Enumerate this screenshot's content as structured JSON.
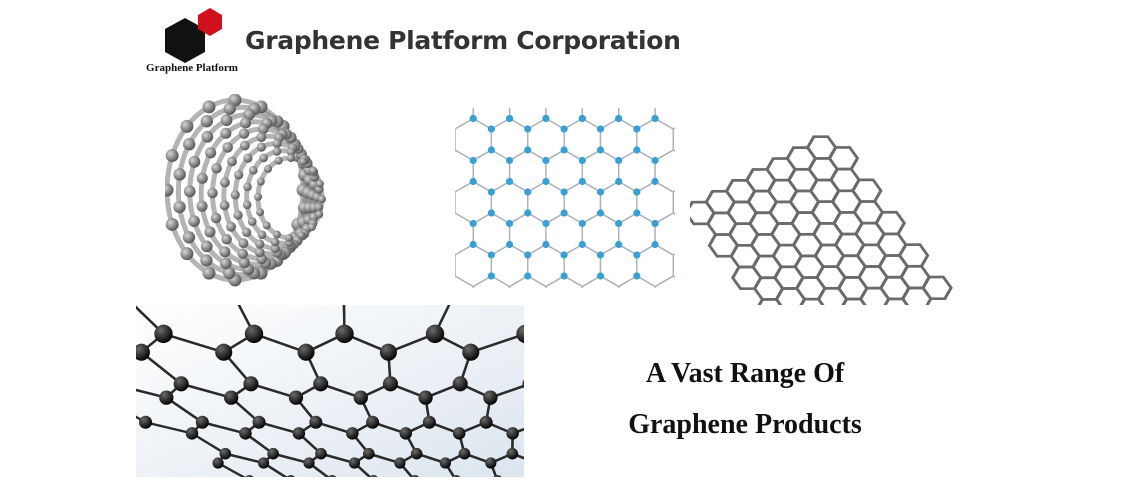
{
  "brand": {
    "logo_caption": "Graphene Platform",
    "company_name": "Graphene Platform Corporation",
    "colors": {
      "logo_dark": "#111111",
      "logo_red": "#d0101c",
      "text": "#333333"
    }
  },
  "banner": {
    "tagline_line1": "A Vast Range Of",
    "tagline_line2": "Graphene Products"
  },
  "illustrations": [
    "carbon-nanotube",
    "blue-hexagonal-lattice",
    "gray-honeycomb-sheet",
    "dark-3d-graphene-lattice"
  ]
}
